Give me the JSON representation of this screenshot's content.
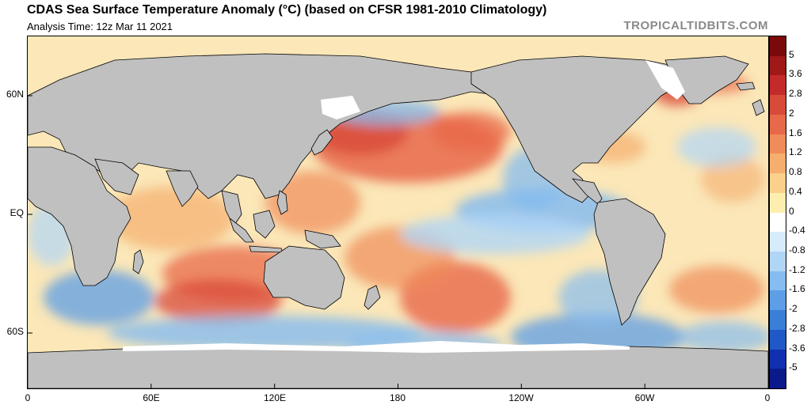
{
  "header": {
    "title": "CDAS Sea Surface Temperature Anomaly (°C) (based on CFSR 1981-2010 Climatology)",
    "subtitle": "Analysis Time: 12z Mar 11 2021",
    "brand": "TROPICALTIDBITS.COM"
  },
  "map": {
    "lat_labels": [
      "60N",
      "EQ",
      "60S"
    ],
    "lon_labels": [
      "0",
      "60E",
      "120E",
      "180",
      "120W",
      "60W",
      "0"
    ],
    "land_color": "#c0c0c0",
    "ice_color": "#ffffff"
  },
  "colorbar": {
    "labels": [
      "5",
      "3.6",
      "2.8",
      "2",
      "1.6",
      "1.2",
      "0.8",
      "0.4",
      "0",
      "-0.4",
      "-0.8",
      "-1.2",
      "-1.6",
      "-2",
      "-2.8",
      "-3.6",
      "-5"
    ],
    "colors": [
      "#7a0a0a",
      "#a01818",
      "#c32a2a",
      "#d84a3a",
      "#e8684a",
      "#f08c5a",
      "#f5ae6e",
      "#fad08a",
      "#fdeeb0",
      "#ffffff",
      "#d6ecfb",
      "#b0d6f6",
      "#86bcef",
      "#5e9ee6",
      "#3a7ed8",
      "#2058c8",
      "#1030b0",
      "#0a1a8a"
    ]
  }
}
